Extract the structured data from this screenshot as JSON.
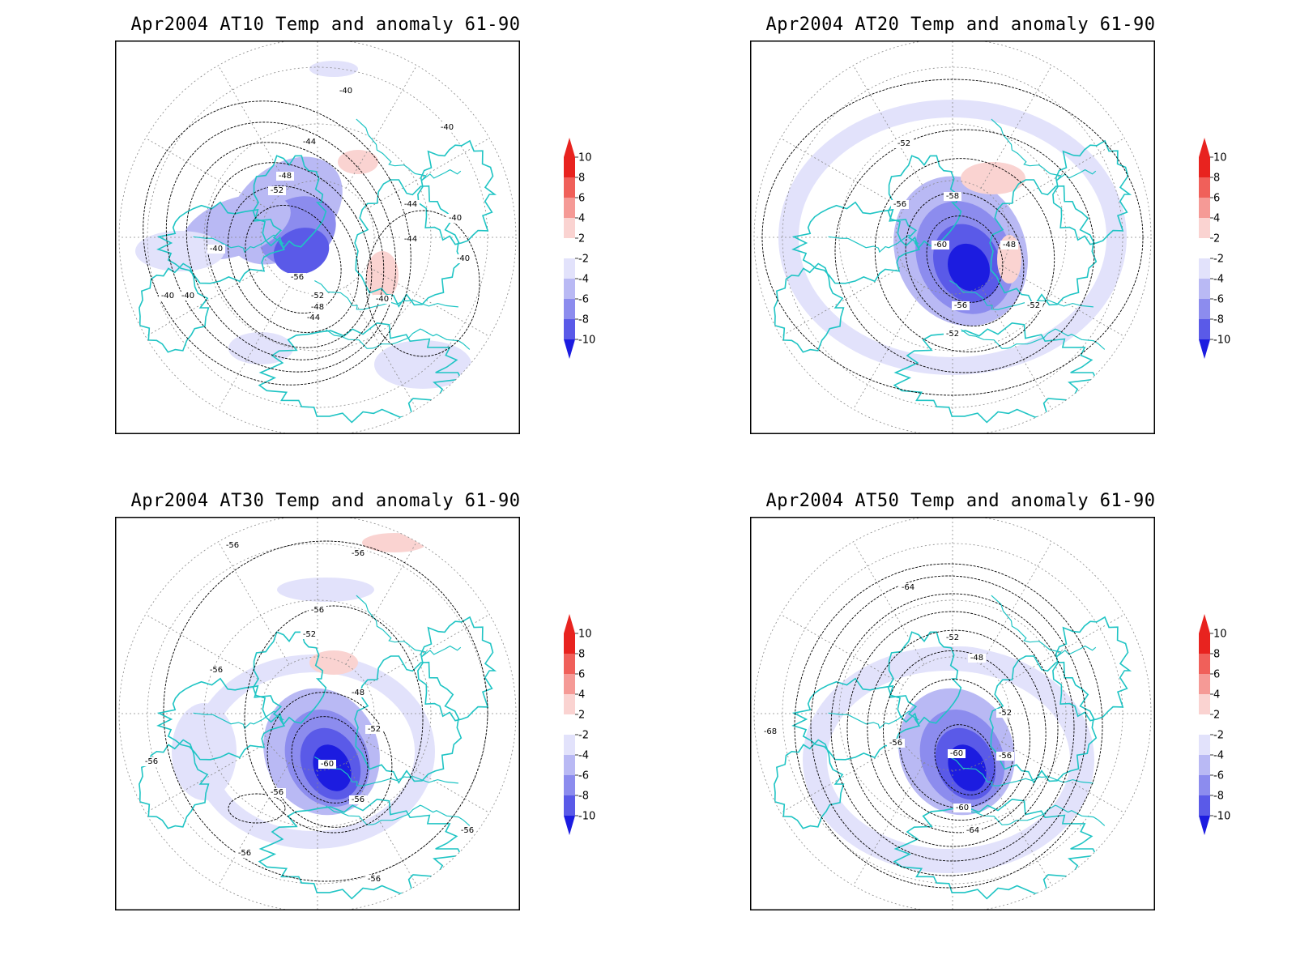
{
  "panels": [
    {
      "title": "Apr2004 AT10 Temp and anomaly 61-90",
      "labels": [
        "-40",
        "-40",
        "-44",
        "-48",
        "-52",
        "-40",
        "-40",
        "-44",
        "-40",
        "-40",
        "-40",
        "-56",
        "-52",
        "-48",
        "-44",
        "-40",
        "-44"
      ]
    },
    {
      "title": "Apr2004 AT20 Temp and anomaly 61-90",
      "labels": [
        "-52",
        "-56",
        "-58",
        "-60",
        "-48",
        "-56",
        "-52",
        "-52"
      ]
    },
    {
      "title": "Apr2004 AT30 Temp and anomaly 61-90",
      "labels": [
        "-56",
        "-56",
        "-56",
        "-52",
        "-56",
        "-48",
        "-52",
        "-60",
        "-56",
        "-56",
        "-56",
        "-56",
        "-56",
        "-56"
      ]
    },
    {
      "title": "Apr2004 AT50 Temp and anomaly 61-90",
      "labels": [
        "-64",
        "-52",
        "-48",
        "-56",
        "-52",
        "-68",
        "-60",
        "-56",
        "-60",
        "-64"
      ]
    }
  ],
  "colorbar": {
    "labels": [
      "10",
      "8",
      "6",
      "4",
      "2",
      "-2",
      "-4",
      "-6",
      "-8",
      "-10"
    ],
    "colors": [
      "#e8231f",
      "#f0605a",
      "#f59a96",
      "#fad3d1",
      "#ffffff",
      "#e2e2fb",
      "#b9b9f4",
      "#8c8cee",
      "#5a5ae8",
      "#1c1ce0"
    ]
  },
  "colors": {
    "coast": "#1fc4c4",
    "frame": "#000000",
    "contour": "#000000"
  }
}
